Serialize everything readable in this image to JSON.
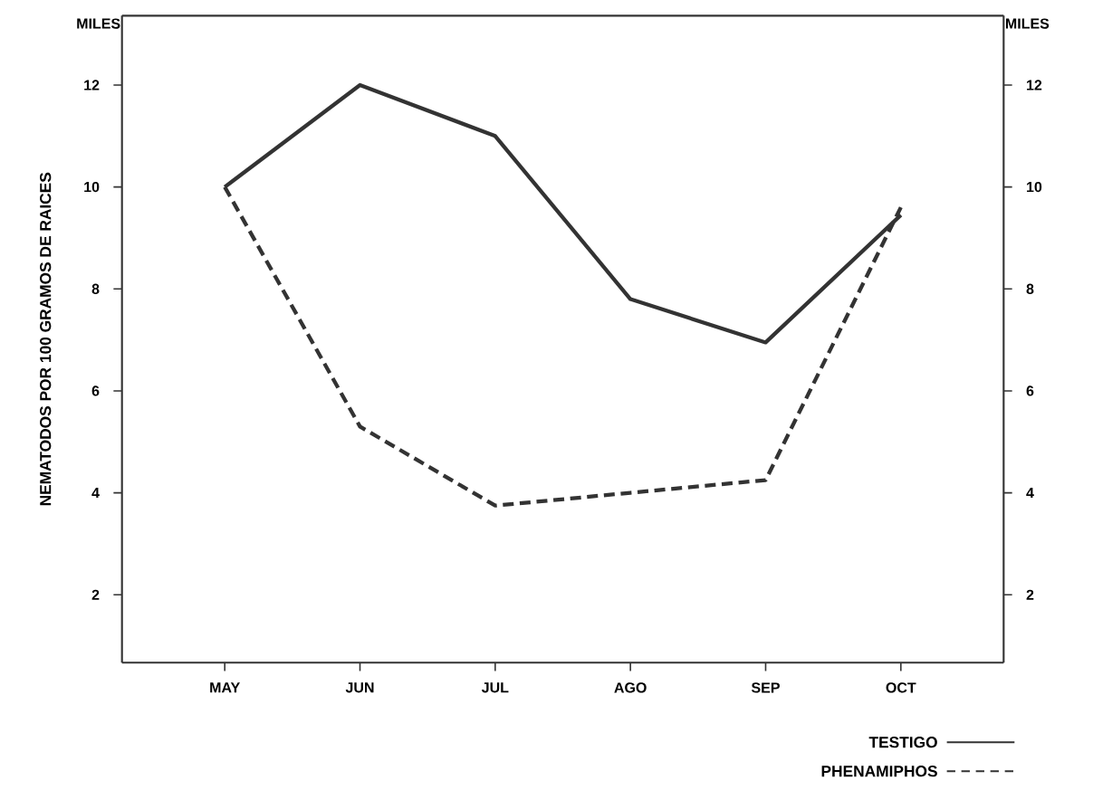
{
  "chart_data": {
    "type": "line",
    "ylabel": "NEMATODOS POR 100 GRAMOS DE RAICES",
    "categories": [
      "MAY",
      "JUN",
      "JUL",
      "AGO",
      "SEP",
      "OCT"
    ],
    "series": [
      {
        "name": "TESTIGO",
        "color": "#333333",
        "line_style": "solid",
        "values": [
          10,
          12,
          11.0,
          7.8,
          6.95,
          9.45
        ]
      },
      {
        "name": "PHENAMIPHOS",
        "color": "#333333",
        "line_style": "dashed",
        "values": [
          10,
          5.3,
          3.75,
          4.0,
          4.25,
          9.6
        ]
      }
    ],
    "ylim": [
      0.67,
      13.36
    ],
    "yticks": [
      2,
      4,
      6,
      8,
      10,
      12
    ],
    "y2lim": [
      0.67,
      13.36
    ],
    "y2ticks": [
      2,
      4,
      6,
      8,
      10,
      12
    ],
    "annotations": [
      "MILES",
      "MILES"
    ],
    "legend": "bottom right",
    "grid": false,
    "marker": "none"
  }
}
